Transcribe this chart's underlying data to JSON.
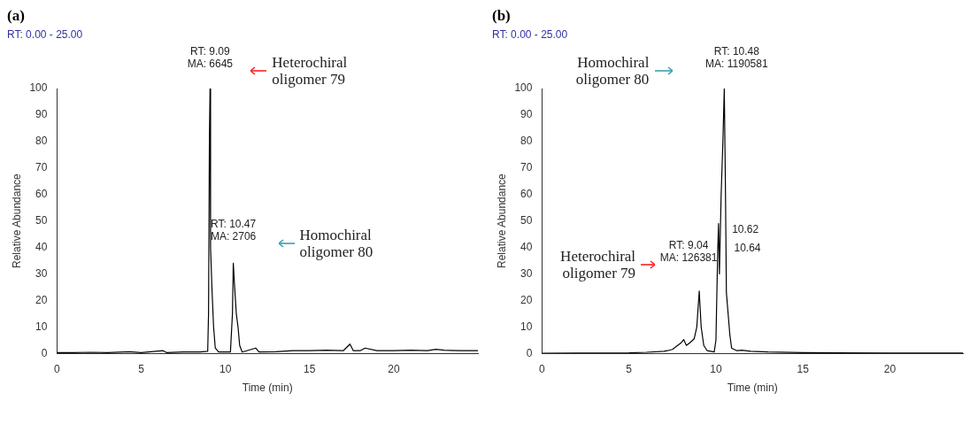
{
  "chart_data": [
    {
      "type": "line",
      "title": "(a)",
      "subtitle": "RT: 0.00 - 25.00",
      "xlabel": "Time (min)",
      "ylabel": "Relative Abundance",
      "xlim": [
        0,
        25
      ],
      "xticks": [
        0,
        5,
        10,
        15,
        20
      ],
      "ylim": [
        0,
        100
      ],
      "yticks": [
        0,
        10,
        20,
        30,
        40,
        50,
        60,
        70,
        80,
        90,
        100
      ],
      "grid": false,
      "legend": false,
      "marker": "none",
      "series": [
        {
          "color": "#000000",
          "x": [
            0,
            1,
            2,
            3,
            4.3,
            5,
            6.3,
            6.5,
            7.5,
            8.5,
            8.95,
            9.0,
            9.05,
            9.09,
            9.12,
            9.2,
            9.3,
            9.4,
            9.6,
            10.3,
            10.42,
            10.47,
            10.55,
            10.65,
            10.75,
            10.85,
            11.0,
            11.8,
            12.0,
            13.0,
            14.0,
            15.0,
            16.0,
            17.0,
            17.4,
            17.6,
            18.0,
            18.3,
            19.0,
            20.0,
            21.0,
            22.0,
            22.5,
            23.0,
            24.0,
            25.0
          ],
          "values": [
            0.3,
            0.3,
            0.4,
            0.3,
            0.6,
            0.3,
            1,
            0.3,
            0.5,
            0.5,
            0.8,
            15,
            80,
            100,
            40,
            25,
            10,
            2,
            0.5,
            0.5,
            15,
            34,
            25,
            15,
            10,
            3,
            0.5,
            2,
            0.5,
            0.6,
            1,
            1,
            1.2,
            1,
            3.5,
            1,
            1,
            2,
            1,
            1,
            1.2,
            1,
            1.5,
            1.2,
            1,
            1
          ]
        }
      ],
      "annotations": [
        {
          "text": "RT: 9.09\nMA: 6645",
          "x": 9.09,
          "y": 100
        },
        "Heterochiral\noligomer 79",
        {
          "text": "RT: 10.47\nMA: 2706",
          "x": 10.47,
          "y": 34
        },
        "Homochiral\noligomer 80"
      ]
    },
    {
      "type": "line",
      "title": "(b)",
      "subtitle": "RT: 0.00 - 25.00",
      "xlabel": "Time (min)",
      "ylabel": "Relative Abundance",
      "xlim": [
        0,
        24.2
      ],
      "xticks": [
        0,
        5,
        10,
        15,
        20
      ],
      "ylim": [
        0,
        100
      ],
      "yticks": [
        0,
        10,
        20,
        30,
        40,
        50,
        60,
        70,
        80,
        90,
        100
      ],
      "grid": false,
      "legend": false,
      "marker": "none",
      "series": [
        {
          "color": "#000000",
          "x": [
            0,
            2,
            5,
            6,
            7,
            7.2,
            7.5,
            8.0,
            8.15,
            8.3,
            8.5,
            8.75,
            8.9,
            9.04,
            9.15,
            9.3,
            9.5,
            9.9,
            10.0,
            10.1,
            10.15,
            10.2,
            10.3,
            10.4,
            10.48,
            10.55,
            10.6,
            10.7,
            10.8,
            10.9,
            11.2,
            11.5,
            12,
            13,
            15,
            17,
            20,
            24.2
          ],
          "values": [
            0,
            0.1,
            0.2,
            0.4,
            0.8,
            1,
            1.5,
            4,
            5.2,
            3,
            4,
            5.5,
            10,
            23.5,
            10,
            3,
            1,
            0.5,
            5,
            38,
            49,
            30,
            60,
            80,
            100,
            60,
            23,
            15,
            7,
            2,
            1,
            1.2,
            0.8,
            0.5,
            0.3,
            0.2,
            0.1,
            0.1
          ]
        }
      ],
      "annotations": [
        {
          "text": "RT: 10.48\nMA: 1190581",
          "x": 10.48,
          "y": 100
        },
        "Homochiral\noligomer 80",
        {
          "text": "10.62",
          "x": 10.62,
          "y": 45
        },
        {
          "text": "10.64",
          "x": 10.64,
          "y": 38
        },
        {
          "text": "RT: 9.04\nMA: 126381",
          "x": 9.04,
          "y": 23.5
        },
        "Heterochiral\noligomer 79"
      ]
    }
  ]
}
